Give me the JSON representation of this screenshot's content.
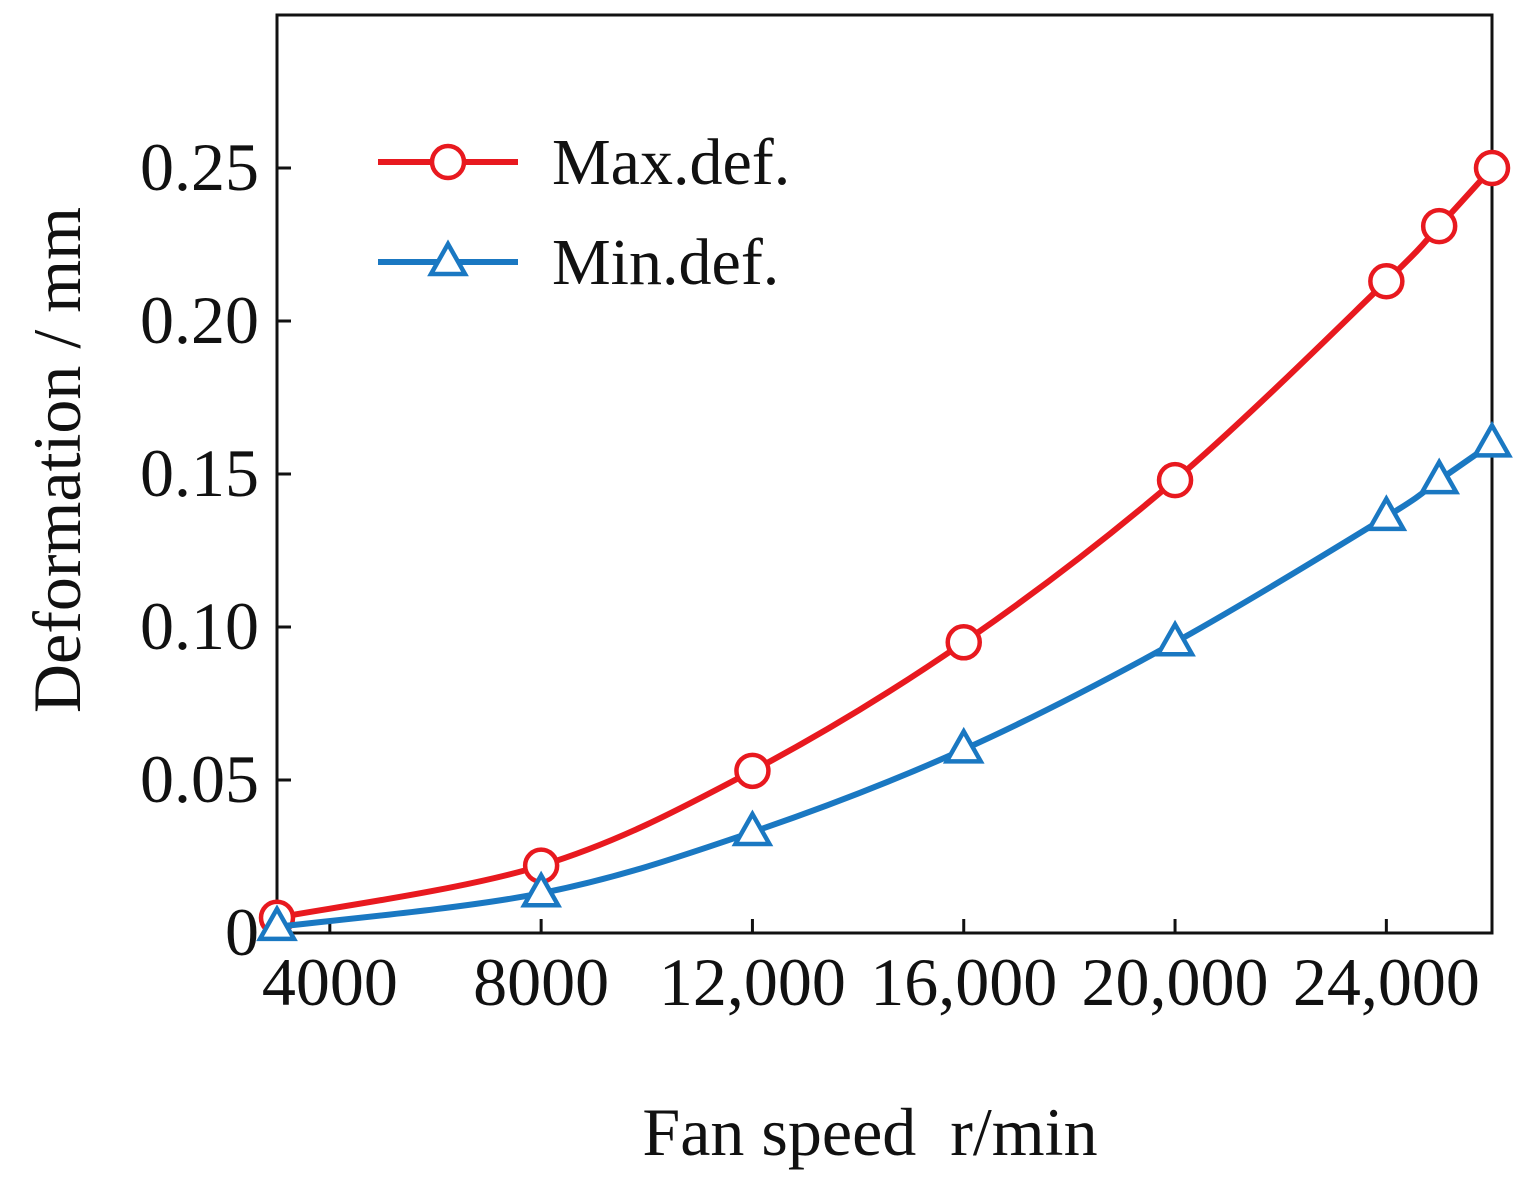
{
  "chart_data": {
    "type": "line",
    "title": "",
    "xlabel": "Fan speed  r/min",
    "ylabel": "Deformation / mm",
    "x": [
      3000,
      8000,
      12000,
      16000,
      20000,
      24000,
      25000,
      26000
    ],
    "xlim": [
      3000,
      26000
    ],
    "ylim": [
      0,
      0.3
    ],
    "xticks": [
      4000,
      8000,
      12000,
      16000,
      20000,
      24000
    ],
    "xtick_labels": [
      "4000",
      "8000",
      "12,000",
      "16,000",
      "20,000",
      "24,000"
    ],
    "yticks": [
      0,
      0.05,
      0.1,
      0.15,
      0.2,
      0.25
    ],
    "ytick_labels": [
      "0",
      "0.05",
      "0.10",
      "0.15",
      "0.20",
      "0.25"
    ],
    "grid": false,
    "legend_position": "top-left",
    "series": [
      {
        "name": "Max.def.",
        "color": "#e8191f",
        "marker": "circle",
        "values": [
          0.005,
          0.022,
          0.053,
          0.095,
          0.148,
          0.213,
          0.231,
          0.25
        ]
      },
      {
        "name": "Min.def.",
        "color": "#1a78c2",
        "marker": "triangle",
        "values": [
          0.002,
          0.013,
          0.033,
          0.06,
          0.095,
          0.136,
          0.148,
          0.16
        ]
      }
    ]
  }
}
